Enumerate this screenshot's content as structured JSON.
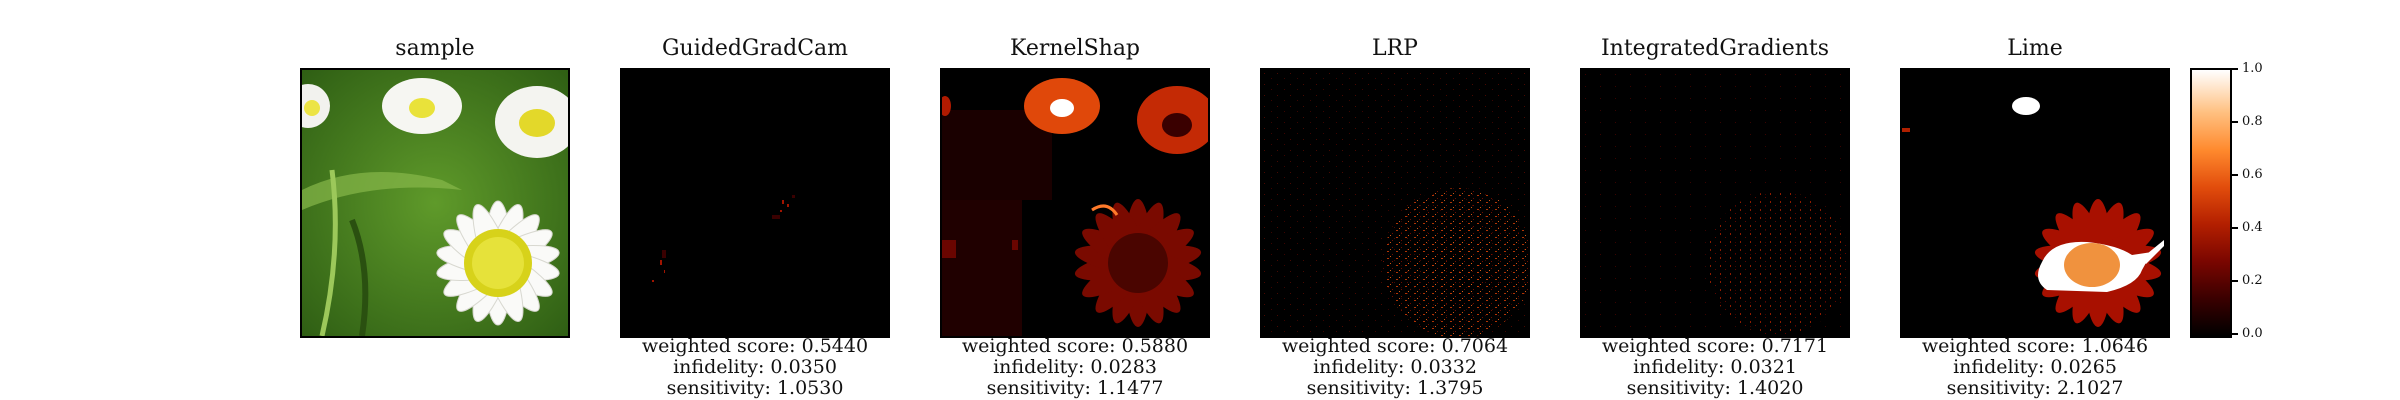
{
  "panels": [
    {
      "title": "sample",
      "metrics": []
    },
    {
      "title": "GuidedGradCam",
      "metrics": [
        "weighted score: 0.5440",
        "infidelity: 0.0350",
        "sensitivity: 1.0530"
      ]
    },
    {
      "title": "KernelShap",
      "metrics": [
        "weighted score: 0.5880",
        "infidelity: 0.0283",
        "sensitivity: 1.1477"
      ]
    },
    {
      "title": "LRP",
      "metrics": [
        "weighted score: 0.7064",
        "infidelity: 0.0332",
        "sensitivity: 1.3795"
      ]
    },
    {
      "title": "IntegratedGradients",
      "metrics": [
        "weighted score: 0.7171",
        "infidelity: 0.0321",
        "sensitivity: 1.4020"
      ]
    },
    {
      "title": "Lime",
      "metrics": [
        "weighted score: 1.0646",
        "infidelity: 0.0265",
        "sensitivity: 2.1027"
      ]
    }
  ],
  "colorbar": {
    "ticks": [
      "0.0",
      "0.2",
      "0.4",
      "0.6",
      "0.8",
      "1.0"
    ],
    "colormap": [
      "#000000",
      "#7a0600",
      "#e24d0c",
      "#ffc080",
      "#ffffff"
    ]
  }
}
